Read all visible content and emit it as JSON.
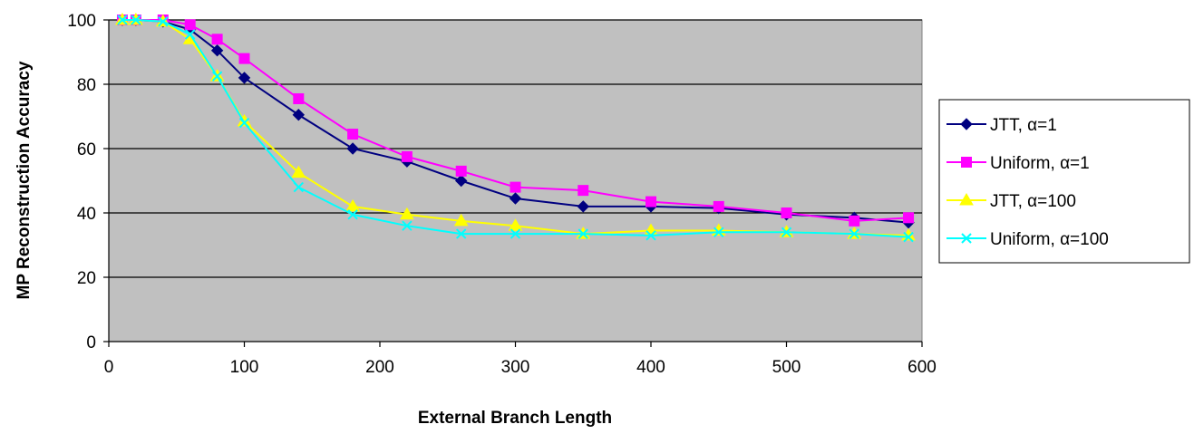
{
  "chart_data": {
    "type": "line",
    "title": "",
    "xlabel": "External Branch Length",
    "ylabel": "MP Reconstruction Accuracy",
    "xlim": [
      0,
      600
    ],
    "ylim": [
      0,
      100
    ],
    "x_ticks": [
      "0",
      "100",
      "200",
      "300",
      "400",
      "500",
      "600"
    ],
    "y_ticks": [
      "0",
      "20",
      "40",
      "60",
      "80",
      "100"
    ],
    "grid": "horizontal",
    "plot_background": "#c0c0c0",
    "legend_position": "right",
    "series": [
      {
        "name": "JTT, α=1",
        "color": "#000080",
        "marker": "diamond",
        "x": [
          10,
          20,
          40,
          60,
          80,
          100,
          140,
          180,
          220,
          260,
          300,
          350,
          400,
          450,
          500,
          550,
          590
        ],
        "y": [
          100,
          100,
          99.5,
          97,
          90.5,
          82,
          70.5,
          60,
          56,
          50,
          44.5,
          42,
          42,
          41.5,
          39.5,
          38.5,
          37
        ]
      },
      {
        "name": "Uniform, α=1",
        "color": "#ff00ff",
        "marker": "square",
        "x": [
          10,
          20,
          40,
          60,
          80,
          100,
          140,
          180,
          220,
          260,
          300,
          350,
          400,
          450,
          500,
          550,
          590
        ],
        "y": [
          100,
          100,
          100,
          98.5,
          94,
          88,
          75.5,
          64.5,
          57.5,
          53,
          48,
          47,
          43.5,
          42,
          40,
          37.5,
          38.5
        ]
      },
      {
        "name": "JTT, α=100",
        "color": "#ffff00",
        "marker": "triangle",
        "x": [
          10,
          20,
          40,
          60,
          80,
          100,
          140,
          180,
          220,
          260,
          300,
          350,
          400,
          450,
          500,
          550,
          590
        ],
        "y": [
          100,
          100,
          99.5,
          94,
          82.5,
          68.5,
          52.5,
          42,
          39.5,
          37.5,
          36,
          33.5,
          34.5,
          34.5,
          34,
          33.5,
          33
        ]
      },
      {
        "name": "Uniform, α=100",
        "color": "#00ffff",
        "marker": "x",
        "x": [
          10,
          20,
          40,
          60,
          80,
          100,
          140,
          180,
          220,
          260,
          300,
          350,
          400,
          450,
          500,
          550,
          590
        ],
        "y": [
          100,
          100,
          99.5,
          95.5,
          82.5,
          68,
          48,
          39.5,
          36,
          33.5,
          33.5,
          33.5,
          33,
          34,
          34,
          33.5,
          32.5
        ]
      }
    ]
  }
}
